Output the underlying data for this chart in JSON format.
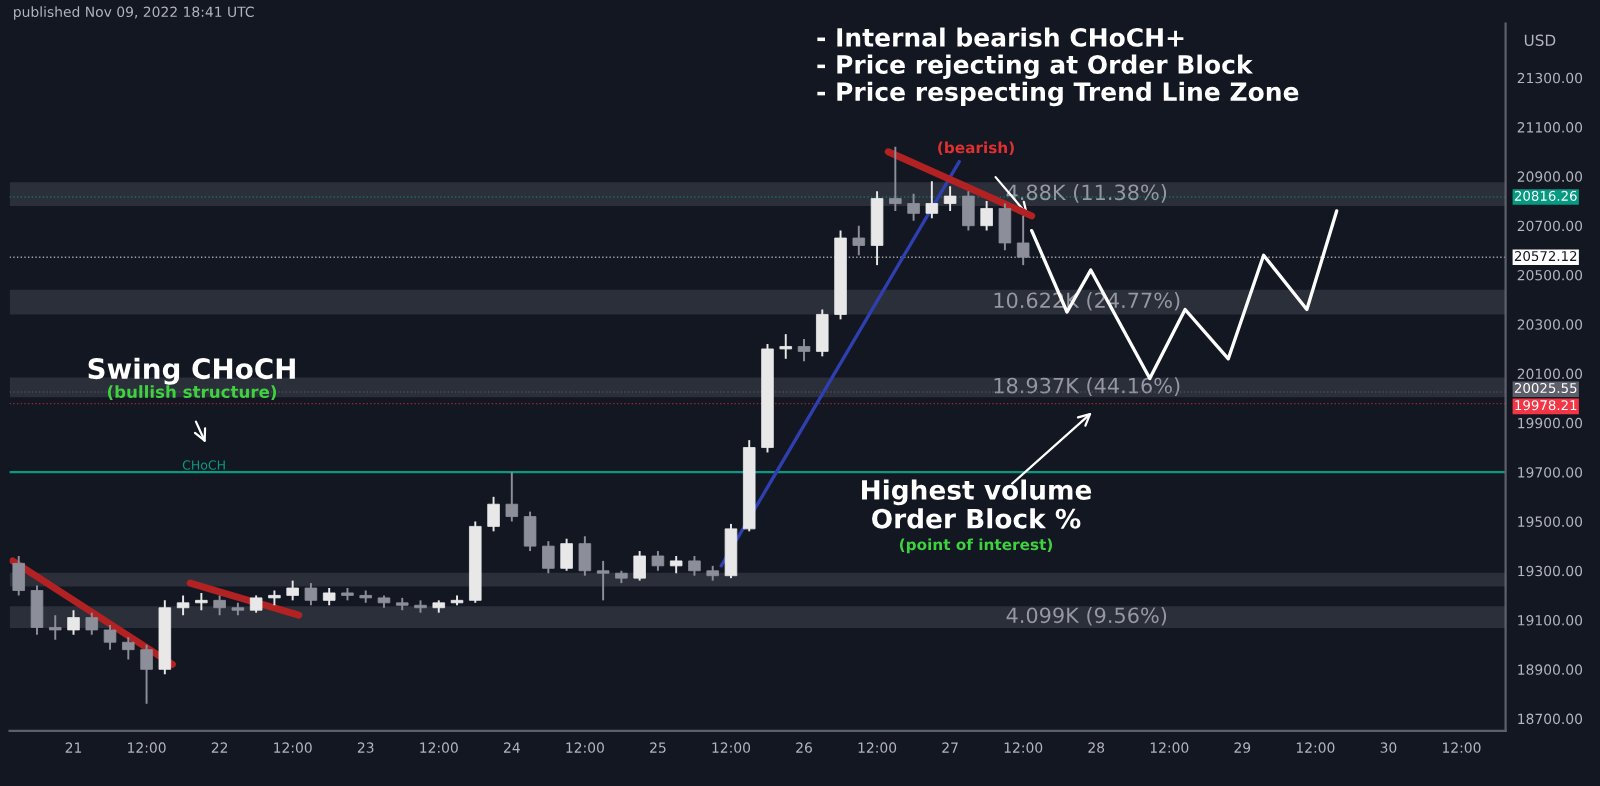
{
  "chart_data": {
    "type": "candlestick",
    "ylabel": "USD",
    "annotations": [
      "published Nov 09, 2022 18:41 UTC",
      "Swing CHoCH",
      "(bullish structure)",
      "- Internal bearish CHoCH+\n- Price rejecting at Order Block\n- Price respecting Trend Line Zone",
      "(bearish)",
      "Highest volume\nOrder Block %",
      "(point of interest)"
    ],
    "xlim": [
      "2022-10-20T13:30",
      "2022-10-30T19:15"
    ],
    "xticks": [
      {
        "value": "2022-10-21T00:00",
        "label": "21"
      },
      {
        "value": "2022-10-21T12:00",
        "label": "12:00"
      },
      {
        "value": "2022-10-22T00:00",
        "label": "22"
      },
      {
        "value": "2022-10-22T12:00",
        "label": "12:00"
      },
      {
        "value": "2022-10-23T00:00",
        "label": "23"
      },
      {
        "value": "2022-10-23T12:00",
        "label": "12:00"
      },
      {
        "value": "2022-10-24T00:00",
        "label": "24"
      },
      {
        "value": "2022-10-24T12:00",
        "label": "12:00"
      },
      {
        "value": "2022-10-25T00:00",
        "label": "25"
      },
      {
        "value": "2022-10-25T12:00",
        "label": "12:00"
      },
      {
        "value": "2022-10-26T00:00",
        "label": "26"
      },
      {
        "value": "2022-10-26T12:00",
        "label": "12:00"
      },
      {
        "value": "2022-10-27T00:00",
        "label": "27"
      },
      {
        "value": "2022-10-27T12:00",
        "label": "12:00"
      },
      {
        "value": "2022-10-28T00:00",
        "label": "28"
      },
      {
        "value": "2022-10-28T12:00",
        "label": "12:00"
      },
      {
        "value": "2022-10-29T00:00",
        "label": "29"
      },
      {
        "value": "2022-10-29T12:00",
        "label": "12:00"
      },
      {
        "value": "2022-10-30T00:00",
        "label": "30"
      },
      {
        "value": "2022-10-30T12:00",
        "label": "12:00"
      }
    ],
    "ylim": [
      18650,
      21520
    ],
    "yticks": [
      {
        "value": 18700,
        "label": "18700.00"
      },
      {
        "value": 18900,
        "label": "18900.00"
      },
      {
        "value": 19100,
        "label": "19100.00"
      },
      {
        "value": 19300,
        "label": "19300.00"
      },
      {
        "value": 19500,
        "label": "19500.00"
      },
      {
        "value": 19700,
        "label": "19700.00"
      },
      {
        "value": 19900,
        "label": "19900.00"
      },
      {
        "value": 20100,
        "label": "20100.00"
      },
      {
        "value": 20300,
        "label": "20300.00"
      },
      {
        "value": 20500,
        "label": "20500.00"
      },
      {
        "value": 20700,
        "label": "20700.00"
      },
      {
        "value": 20900,
        "label": "20900.00"
      },
      {
        "value": 21100,
        "label": "21100.00"
      },
      {
        "value": 21300,
        "label": "21300.00"
      }
    ],
    "bands": [
      {
        "axis": "y",
        "from": 20780,
        "to": 20876,
        "label": "4.88K (11.38%)",
        "color": "#363a45"
      },
      {
        "axis": "y",
        "from": 20340,
        "to": 20440,
        "label": "10.622K (24.77%)",
        "color": "#363a45"
      },
      {
        "axis": "y",
        "from": 20004,
        "to": 20084,
        "label": "18.937K (44.16%)",
        "color": "#363a45"
      },
      {
        "axis": "y",
        "from": 19236,
        "to": 19292,
        "color": "#363a45"
      },
      {
        "axis": "y",
        "from": 19068,
        "to": 19156,
        "label": "4.099K (9.56%)",
        "color": "#363a45"
      }
    ],
    "ref_lines": [
      {
        "axis": "y",
        "value": 19700,
        "label": "CHoCH",
        "color": "#089981",
        "line_style": "solid"
      },
      {
        "axis": "y",
        "value": 20816.26,
        "label": "20816.26",
        "color": "#089981",
        "line_style": "dotted"
      },
      {
        "axis": "y",
        "value": 20572.12,
        "label": "20572.12",
        "color": "#ffffff",
        "line_style": "dotted"
      },
      {
        "axis": "y",
        "value": 20025.55,
        "label": "20025.55",
        "color": "#5d606b",
        "line_style": "dotted"
      },
      {
        "axis": "y",
        "value": 19978.21,
        "label": "19978.21",
        "color": "#f23645",
        "line_style": "dotted"
      }
    ],
    "series": [
      {
        "x": [
          "2022-10-20T15:00",
          "2022-10-20T18:00",
          "2022-10-20T21:00",
          "2022-10-21T00:00",
          "2022-10-21T03:00",
          "2022-10-21T06:00",
          "2022-10-21T09:00",
          "2022-10-21T12:00",
          "2022-10-21T15:00",
          "2022-10-21T18:00",
          "2022-10-21T21:00",
          "2022-10-22T00:00",
          "2022-10-22T03:00",
          "2022-10-22T06:00",
          "2022-10-22T09:00",
          "2022-10-22T12:00",
          "2022-10-22T15:00",
          "2022-10-22T18:00",
          "2022-10-22T21:00",
          "2022-10-23T00:00",
          "2022-10-23T03:00",
          "2022-10-23T06:00",
          "2022-10-23T09:00",
          "2022-10-23T12:00",
          "2022-10-23T15:00",
          "2022-10-23T18:00",
          "2022-10-23T21:00",
          "2022-10-24T00:00",
          "2022-10-24T03:00",
          "2022-10-24T06:00",
          "2022-10-24T09:00",
          "2022-10-24T12:00",
          "2022-10-24T15:00",
          "2022-10-24T18:00",
          "2022-10-24T21:00",
          "2022-10-25T00:00",
          "2022-10-25T03:00",
          "2022-10-25T06:00",
          "2022-10-25T09:00",
          "2022-10-25T12:00",
          "2022-10-25T15:00",
          "2022-10-25T18:00",
          "2022-10-25T21:00",
          "2022-10-26T00:00",
          "2022-10-26T03:00",
          "2022-10-26T06:00",
          "2022-10-26T09:00",
          "2022-10-26T12:00",
          "2022-10-26T15:00",
          "2022-10-26T18:00",
          "2022-10-26T21:00",
          "2022-10-27T00:00",
          "2022-10-27T03:00",
          "2022-10-27T06:00",
          "2022-10-27T09:00",
          "2022-10-27T12:00"
        ],
        "ohlc": [
          [
            19330,
            19360,
            19200,
            19220
          ],
          [
            19220,
            19240,
            19040,
            19070
          ],
          [
            19070,
            19120,
            19020,
            19060
          ],
          [
            19060,
            19140,
            19040,
            19110
          ],
          [
            19110,
            19130,
            19040,
            19060
          ],
          [
            19060,
            19080,
            18980,
            19010
          ],
          [
            19010,
            19030,
            18940,
            18980
          ],
          [
            18980,
            19000,
            18760,
            18900
          ],
          [
            18900,
            19180,
            18880,
            19150
          ],
          [
            19150,
            19200,
            19120,
            19170
          ],
          [
            19170,
            19210,
            19140,
            19180
          ],
          [
            19180,
            19200,
            19120,
            19150
          ],
          [
            19150,
            19170,
            19120,
            19140
          ],
          [
            19140,
            19200,
            19130,
            19190
          ],
          [
            19190,
            19220,
            19160,
            19200
          ],
          [
            19200,
            19260,
            19180,
            19230
          ],
          [
            19230,
            19250,
            19160,
            19180
          ],
          [
            19180,
            19230,
            19160,
            19210
          ],
          [
            19210,
            19230,
            19180,
            19200
          ],
          [
            19200,
            19220,
            19170,
            19190
          ],
          [
            19190,
            19200,
            19150,
            19170
          ],
          [
            19170,
            19190,
            19140,
            19160
          ],
          [
            19160,
            19180,
            19130,
            19150
          ],
          [
            19150,
            19180,
            19130,
            19170
          ],
          [
            19170,
            19200,
            19160,
            19180
          ],
          [
            19180,
            19500,
            19170,
            19480
          ],
          [
            19480,
            19600,
            19460,
            19570
          ],
          [
            19570,
            19700,
            19500,
            19520
          ],
          [
            19520,
            19540,
            19380,
            19400
          ],
          [
            19400,
            19420,
            19290,
            19310
          ],
          [
            19310,
            19430,
            19300,
            19410
          ],
          [
            19410,
            19440,
            19280,
            19300
          ],
          [
            19300,
            19340,
            19180,
            19290
          ],
          [
            19290,
            19300,
            19250,
            19270
          ],
          [
            19270,
            19380,
            19260,
            19360
          ],
          [
            19360,
            19380,
            19300,
            19320
          ],
          [
            19320,
            19360,
            19290,
            19340
          ],
          [
            19340,
            19360,
            19280,
            19300
          ],
          [
            19300,
            19320,
            19260,
            19280
          ],
          [
            19280,
            19490,
            19270,
            19470
          ],
          [
            19470,
            19830,
            19460,
            19800
          ],
          [
            19800,
            20220,
            19780,
            20200
          ],
          [
            20200,
            20260,
            20160,
            20210
          ],
          [
            20210,
            20240,
            20150,
            20190
          ],
          [
            20190,
            20360,
            20170,
            20340
          ],
          [
            20340,
            20680,
            20320,
            20650
          ],
          [
            20650,
            20700,
            20580,
            20620
          ],
          [
            20620,
            20840,
            20540,
            20810
          ],
          [
            20810,
            21020,
            20760,
            20790
          ],
          [
            20790,
            20830,
            20720,
            20750
          ],
          [
            20750,
            20880,
            20730,
            20790
          ],
          [
            20790,
            20860,
            20760,
            20820
          ],
          [
            20820,
            20840,
            20680,
            20700
          ],
          [
            20700,
            20800,
            20680,
            20770
          ],
          [
            20770,
            20790,
            20600,
            20630
          ],
          [
            20630,
            20740,
            20540,
            20572.12
          ]
        ]
      },
      {
        "type": "line",
        "color": "#ffffff",
        "x": [
          "2022-10-27T13:24",
          "2022-10-27T19:12",
          "2022-10-27T23:06",
          "2022-10-28T08:48",
          "2022-10-28T14:36",
          "2022-10-28T21:42",
          "2022-10-29T03:30",
          "2022-10-29T10:36",
          "2022-10-29T15:30"
        ],
        "values": [
          20680,
          20350,
          20520,
          20080,
          20360,
          20160,
          20580,
          20360,
          20760
        ]
      },
      {
        "type": "line",
        "color": "#2f3fb0",
        "x": [
          "2022-10-25T10:24",
          "2022-10-27T01:30"
        ],
        "values": [
          19320,
          20960
        ]
      },
      {
        "type": "line",
        "color": "#b22222",
        "x": [
          "2022-10-20T14:00",
          "2022-10-21T16:15"
        ],
        "values": [
          19340,
          18920
        ]
      },
      {
        "type": "line",
        "color": "#b22222",
        "x": [
          "2022-10-21T19:10",
          "2022-10-22T13:00"
        ],
        "values": [
          19250,
          19120
        ]
      },
      {
        "type": "line",
        "color": "#b22222",
        "x": [
          "2022-10-26T13:50",
          "2022-10-27T13:24"
        ],
        "values": [
          21000,
          20740
        ]
      }
    ]
  }
}
